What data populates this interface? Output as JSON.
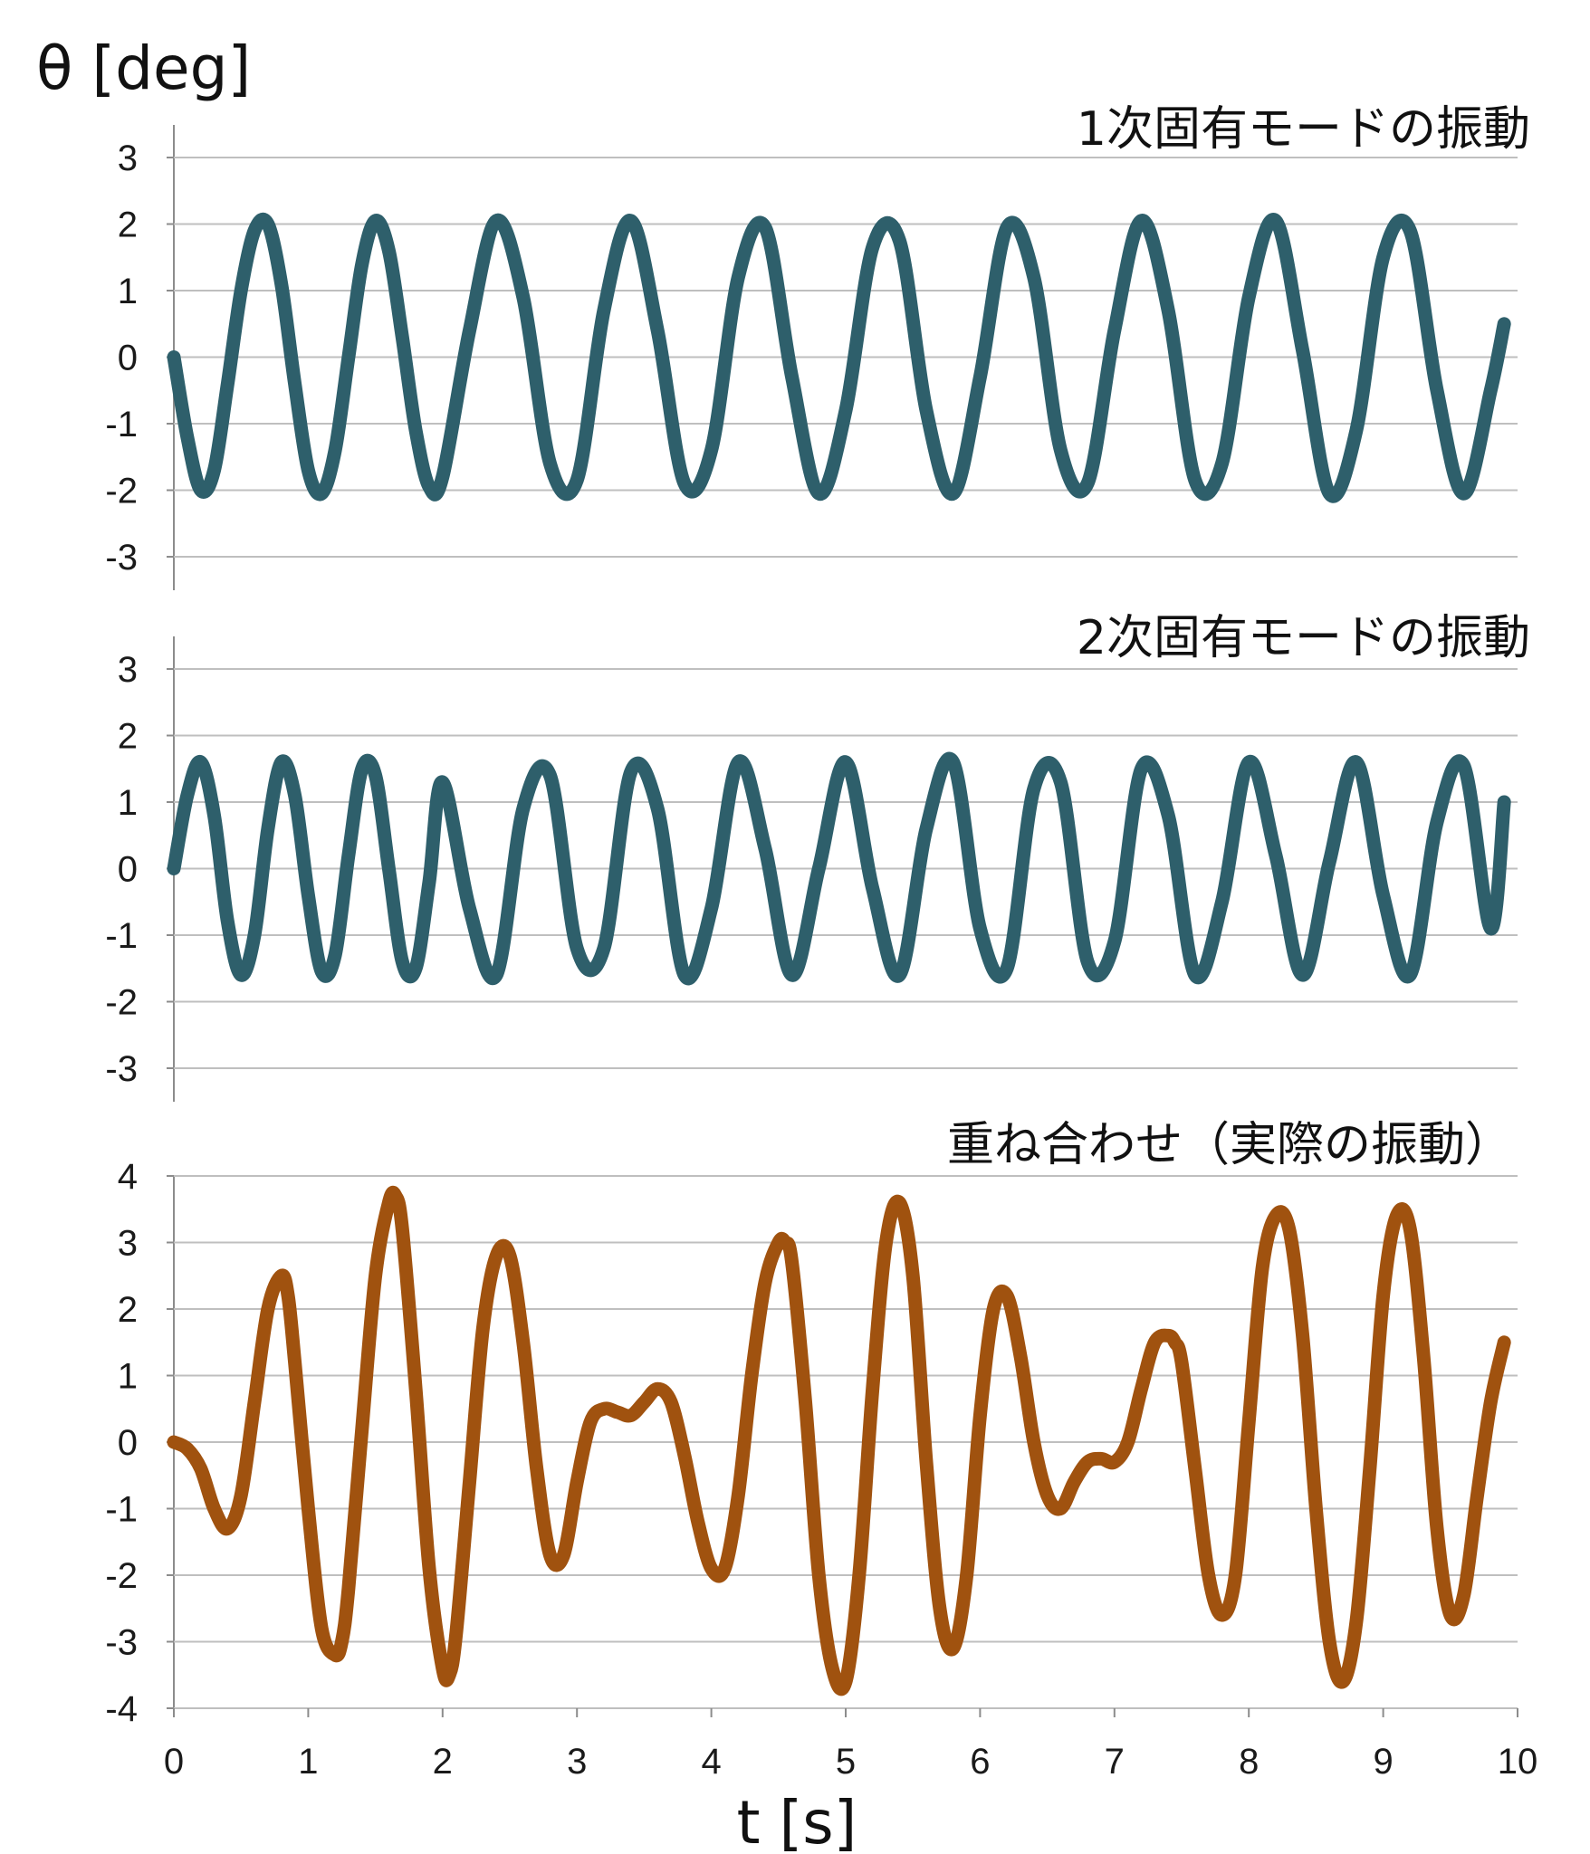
{
  "chart_data": [
    {
      "type": "line",
      "title": "1次固有モードの振動",
      "ylabel": "θ [deg]",
      "xlim": [
        0,
        10
      ],
      "ylim": [
        -3,
        3
      ],
      "yticks": [
        "3",
        "2",
        "1",
        "0",
        "-1",
        "-2",
        "-3"
      ],
      "grid": true,
      "series": [
        {
          "color": "#2e5f6b",
          "x": [
            0,
            0.1,
            0.2,
            0.3,
            0.4,
            0.5,
            0.6,
            0.7,
            0.8,
            0.9,
            1.0,
            1.1,
            1.2,
            1.3,
            1.4,
            1.5,
            1.6,
            1.7,
            1.8,
            1.9,
            2.0,
            2.2,
            2.4,
            2.6,
            2.8,
            3.0,
            3.2,
            3.4,
            3.6,
            3.8,
            4.0,
            4.2,
            4.4,
            4.6,
            4.8,
            5.0,
            5.2,
            5.4,
            5.6,
            5.8,
            6.0,
            6.2,
            6.4,
            6.6,
            6.8,
            7.0,
            7.2,
            7.4,
            7.6,
            7.8,
            8.0,
            8.2,
            8.4,
            8.6,
            8.8,
            9.0,
            9.2,
            9.4,
            9.6,
            9.8,
            9.9
          ],
          "y": [
            0,
            -1.2,
            -2.0,
            -1.7,
            -0.4,
            1.0,
            1.9,
            2.0,
            1.1,
            -0.4,
            -1.7,
            -2.05,
            -1.4,
            0.0,
            1.4,
            2.05,
            1.6,
            0.3,
            -1.1,
            -1.95,
            -1.8,
            0.4,
            2.05,
            0.9,
            -1.6,
            -1.85,
            0.7,
            2.05,
            0.4,
            -1.9,
            -1.4,
            1.2,
            1.95,
            -0.3,
            -2.05,
            -0.8,
            1.65,
            1.75,
            -0.8,
            -2.05,
            -0.3,
            1.95,
            1.2,
            -1.4,
            -1.9,
            0.4,
            2.05,
            0.7,
            -1.85,
            -1.6,
            0.9,
            2.05,
            0.1,
            -2.05,
            -1.1,
            1.5,
            1.9,
            -0.5,
            -2.05,
            -0.5,
            0.5
          ]
        }
      ]
    },
    {
      "type": "line",
      "title": "2次固有モードの振動",
      "xlim": [
        0,
        10
      ],
      "ylim": [
        -3,
        3
      ],
      "yticks": [
        "3",
        "2",
        "1",
        "0",
        "-1",
        "-2",
        "-3"
      ],
      "grid": true,
      "series": [
        {
          "color": "#2e5f6b",
          "x": [
            0,
            0.1,
            0.2,
            0.3,
            0.4,
            0.5,
            0.6,
            0.7,
            0.8,
            0.9,
            1.0,
            1.1,
            1.2,
            1.3,
            1.4,
            1.5,
            1.6,
            1.7,
            1.8,
            1.9,
            2.0,
            2.2,
            2.4,
            2.6,
            2.8,
            3.0,
            3.2,
            3.4,
            3.6,
            3.8,
            4.0,
            4.2,
            4.4,
            4.6,
            4.8,
            5.0,
            5.2,
            5.4,
            5.6,
            5.8,
            6.0,
            6.2,
            6.4,
            6.6,
            6.8,
            7.0,
            7.2,
            7.4,
            7.6,
            7.8,
            8.0,
            8.2,
            8.4,
            8.6,
            8.8,
            9.0,
            9.2,
            9.4,
            9.6,
            9.8,
            9.9
          ],
          "y": [
            0,
            1.1,
            1.6,
            0.8,
            -0.8,
            -1.6,
            -1.0,
            0.6,
            1.6,
            1.1,
            -0.4,
            -1.55,
            -1.3,
            0.2,
            1.5,
            1.4,
            0.0,
            -1.4,
            -1.5,
            -0.2,
            1.3,
            -0.6,
            -1.6,
            0.9,
            1.4,
            -1.2,
            -1.2,
            1.45,
            0.9,
            -1.6,
            -0.6,
            1.6,
            0.3,
            -1.6,
            0.0,
            1.6,
            -0.3,
            -1.6,
            0.6,
            1.6,
            -0.9,
            -1.5,
            1.2,
            1.3,
            -1.4,
            -1.1,
            1.5,
            0.8,
            -1.6,
            -0.5,
            1.6,
            0.2,
            -1.6,
            0.1,
            1.6,
            -0.4,
            -1.6,
            0.7,
            1.55,
            -0.9,
            1.0
          ]
        }
      ]
    },
    {
      "type": "line",
      "title": "重ね合わせ（実際の振動）",
      "xlabel": "t [s]",
      "xlim": [
        0,
        10
      ],
      "ylim": [
        -4,
        4
      ],
      "yticks": [
        "4",
        "3",
        "2",
        "1",
        "0",
        "-1",
        "-2",
        "-3",
        "-4"
      ],
      "xticks": [
        "0",
        "1",
        "2",
        "3",
        "4",
        "5",
        "6",
        "7",
        "8",
        "9",
        "10"
      ],
      "grid": true,
      "series": [
        {
          "color": "#a0520f",
          "x": [
            0,
            0.1,
            0.2,
            0.3,
            0.4,
            0.5,
            0.6,
            0.7,
            0.8,
            0.85,
            0.9,
            1.0,
            1.1,
            1.2,
            1.25,
            1.3,
            1.4,
            1.5,
            1.6,
            1.65,
            1.7,
            1.8,
            1.9,
            2.0,
            2.05,
            2.1,
            2.2,
            2.3,
            2.4,
            2.5,
            2.6,
            2.7,
            2.8,
            2.9,
            3.0,
            3.1,
            3.2,
            3.3,
            3.4,
            3.5,
            3.6,
            3.7,
            3.8,
            3.9,
            4.0,
            4.1,
            4.2,
            4.3,
            4.4,
            4.5,
            4.55,
            4.6,
            4.7,
            4.8,
            4.9,
            5.0,
            5.1,
            5.2,
            5.3,
            5.4,
            5.5,
            5.6,
            5.7,
            5.8,
            5.9,
            6.0,
            6.1,
            6.2,
            6.3,
            6.4,
            6.5,
            6.6,
            6.7,
            6.8,
            6.9,
            7.0,
            7.1,
            7.2,
            7.3,
            7.4,
            7.45,
            7.5,
            7.6,
            7.7,
            7.8,
            7.9,
            8.0,
            8.1,
            8.2,
            8.3,
            8.4,
            8.5,
            8.6,
            8.7,
            8.8,
            8.9,
            9.0,
            9.1,
            9.2,
            9.3,
            9.4,
            9.5,
            9.6,
            9.7,
            9.8,
            9.9
          ],
          "y": [
            0,
            -0.1,
            -0.4,
            -1.0,
            -1.3,
            -0.8,
            0.6,
            2.0,
            2.5,
            2.2,
            1.2,
            -1.0,
            -2.8,
            -3.2,
            -3.0,
            -2.2,
            0.2,
            2.5,
            3.6,
            3.7,
            3.2,
            0.8,
            -1.9,
            -3.4,
            -3.5,
            -2.9,
            -0.6,
            1.7,
            2.8,
            2.8,
            1.5,
            -0.4,
            -1.7,
            -1.7,
            -0.6,
            0.3,
            0.5,
            0.45,
            0.4,
            0.6,
            0.8,
            0.6,
            -0.2,
            -1.2,
            -1.9,
            -1.9,
            -0.8,
            1.0,
            2.4,
            3.0,
            3.0,
            2.7,
            0.6,
            -2.0,
            -3.4,
            -3.6,
            -2.0,
            0.8,
            3.0,
            3.6,
            2.5,
            -0.3,
            -2.5,
            -3.1,
            -2.0,
            0.4,
            2.0,
            2.2,
            1.3,
            0.0,
            -0.8,
            -1.0,
            -0.6,
            -0.3,
            -0.25,
            -0.3,
            0.0,
            0.8,
            1.5,
            1.6,
            1.5,
            1.2,
            -0.4,
            -2.0,
            -2.6,
            -2.0,
            0.3,
            2.6,
            3.4,
            3.2,
            1.6,
            -1.0,
            -3.0,
            -3.6,
            -2.7,
            -0.4,
            2.2,
            3.4,
            3.2,
            1.3,
            -1.3,
            -2.6,
            -2.3,
            -0.8,
            0.6,
            1.5
          ]
        }
      ]
    }
  ]
}
